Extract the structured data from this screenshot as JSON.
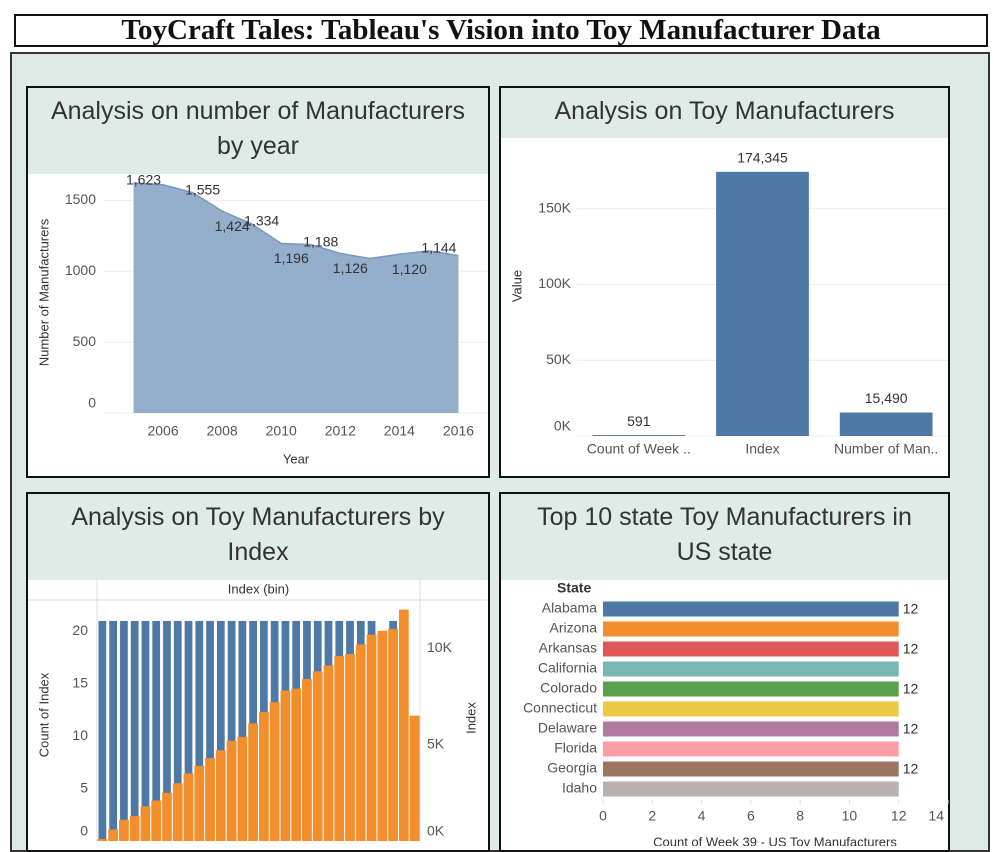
{
  "dashboard_title": "ToyCraft Tales: Tableau's Vision into Toy Manufacturer Data",
  "chart_data": [
    {
      "type": "area",
      "title": "Analysis on number of Manufacturers by year",
      "x_label": "Year",
      "y_label": "Number of Manufacturers",
      "x": [
        2005,
        2006,
        2007,
        2008,
        2009,
        2010,
        2011,
        2012,
        2013,
        2014,
        2015,
        2016
      ],
      "values": [
        1623,
        1610,
        1555,
        1424,
        1334,
        1196,
        1188,
        1126,
        1090,
        1120,
        1144,
        1110
      ],
      "value_labels": [
        "1,623",
        null,
        "1,555",
        "1,424",
        "1,334",
        "1,196",
        "1,188",
        "1,126",
        null,
        "1,120",
        "1,144",
        null
      ],
      "color": "#8eaac9",
      "xlim": [
        2004,
        2017
      ],
      "xticks": [
        2006,
        2008,
        2010,
        2012,
        2014,
        2016
      ],
      "ylim": [
        0,
        1700
      ],
      "yticks": [
        0,
        500,
        1000,
        1500
      ],
      "grid": true
    },
    {
      "type": "bar",
      "title": "Analysis on Toy Manufacturers",
      "y_label": "Value",
      "categories": [
        "Count of Week ..",
        "Index",
        "Number of Man.."
      ],
      "values": [
        591,
        174345,
        15490
      ],
      "value_labels": [
        "591",
        "174,345",
        "15,490"
      ],
      "color": "#4e79a7",
      "ylim": [
        0,
        198000
      ],
      "yticks": [
        {
          "value": 0,
          "label": "0K"
        },
        {
          "value": 50000,
          "label": "50K"
        },
        {
          "value": 100000,
          "label": "100K"
        },
        {
          "value": 150000,
          "label": "150K"
        }
      ],
      "grid": true
    },
    {
      "type": "combo",
      "title": "Analysis on Toy Manufacturers by Index",
      "x_label": "Index (bin)",
      "categories": [
        null,
        null,
        null,
        null,
        null,
        null,
        null,
        null,
        null,
        null,
        null,
        null,
        null,
        null,
        null,
        null,
        null,
        null,
        null,
        null,
        null,
        null,
        null,
        null,
        null,
        null,
        null,
        null,
        null,
        null
      ],
      "series": [
        {
          "name": "Count of Index",
          "color": "#4e79a7",
          "values": [
            21,
            21,
            21,
            21,
            21,
            21,
            21,
            21,
            21,
            21,
            21,
            21,
            21,
            21,
            21,
            21,
            21,
            21,
            21,
            21,
            21,
            21,
            21,
            21,
            21,
            21,
            20,
            21,
            21,
            11
          ]
        },
        {
          "name": "Index",
          "color": "#f28e2b",
          "axis": "y2",
          "values": [
            100,
            600,
            1100,
            1300,
            1800,
            2100,
            2500,
            3000,
            3500,
            3900,
            4300,
            4700,
            5200,
            5400,
            6100,
            6700,
            7200,
            7800,
            7900,
            8400,
            8800,
            9100,
            9600,
            9700,
            10200,
            10700,
            10900,
            11000,
            12000,
            6500
          ]
        }
      ],
      "ylim": [
        0,
        23
      ],
      "yticks": [
        0,
        5,
        10,
        15,
        20
      ],
      "y2lim": [
        0,
        12500
      ],
      "y2ticks": [
        {
          "value": 0,
          "label": "0K"
        },
        {
          "value": 5000,
          "label": "5K"
        },
        {
          "value": 10000,
          "label": "10K"
        }
      ]
    },
    {
      "type": "barh",
      "title": "Top 10 state Toy Manufacturers in US state",
      "y_label": "State",
      "x_label": "Count of Week 39 - US Toy Manufacturers",
      "categories": [
        "Alabama",
        "Arizona",
        "Arkansas",
        "California",
        "Colorado",
        "Connecticut",
        "Delaware",
        "Florida",
        "Georgia",
        "Idaho"
      ],
      "values": [
        12,
        12,
        12,
        12,
        12,
        12,
        12,
        12,
        12,
        12
      ],
      "value_labels": [
        "12",
        null,
        "12",
        null,
        "12",
        null,
        "12",
        null,
        "12",
        null
      ],
      "colors": [
        "#4e79a7",
        "#f28e2b",
        "#e15759",
        "#76b7b2",
        "#59a14f",
        "#edc948",
        "#b07aa1",
        "#ff9da7",
        "#9c755f",
        "#bab0ac"
      ],
      "xlim": [
        0,
        14
      ],
      "xticks": [
        0,
        2,
        4,
        6,
        8,
        10,
        12,
        14
      ]
    }
  ]
}
